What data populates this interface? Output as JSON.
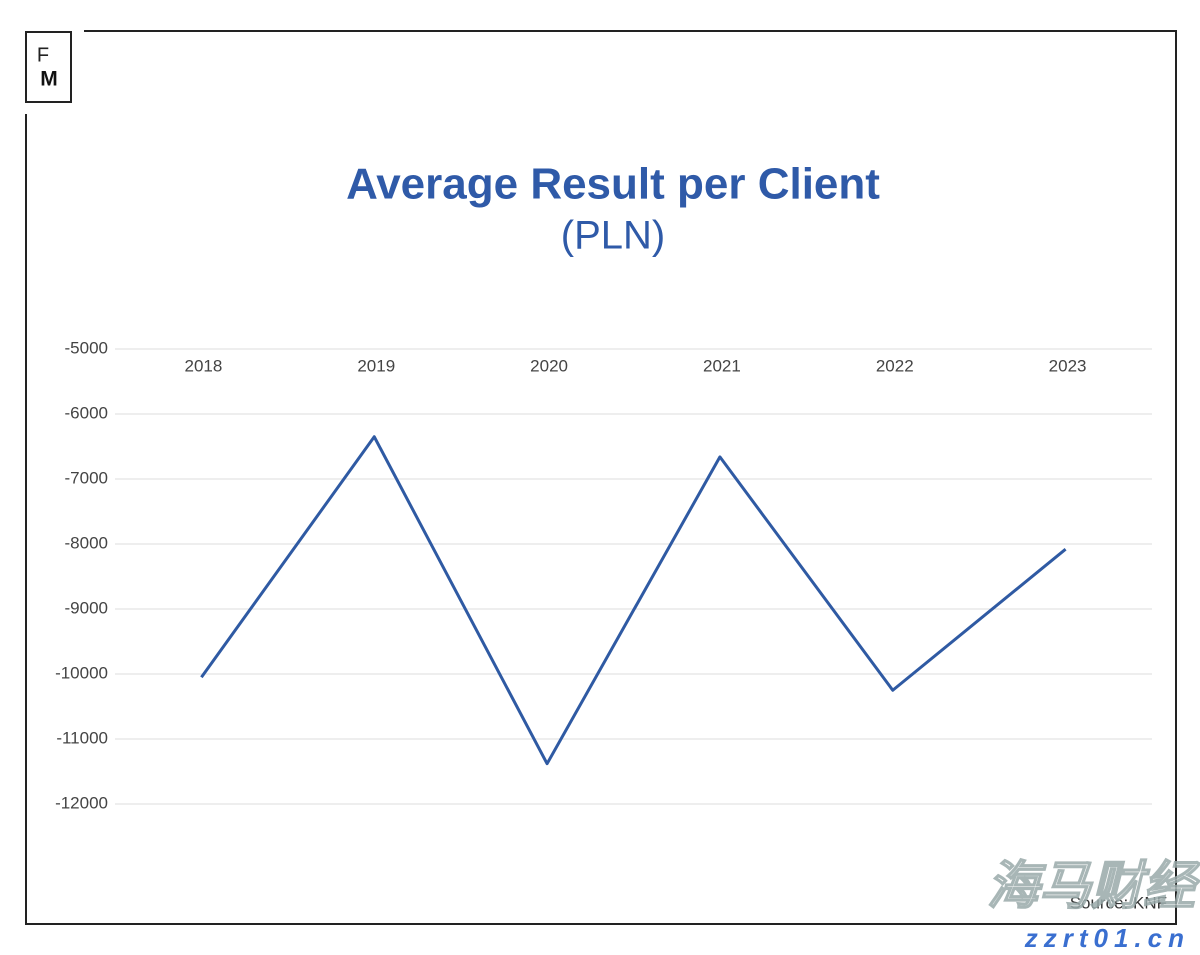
{
  "chart_data": {
    "type": "line",
    "title": "Average Result per Client",
    "subtitle": "(PLN)",
    "categories": [
      "2018",
      "2019",
      "2020",
      "2021",
      "2022",
      "2023"
    ],
    "series": [
      {
        "name": "Average Result per Client",
        "color": "#2f5aa3",
        "values": [
          -10050,
          -6350,
          -11380,
          -6660,
          -10250,
          -8080
        ]
      }
    ],
    "ylim": [
      -12000,
      -5000
    ],
    "yticks": [
      -5000,
      -6000,
      -7000,
      -8000,
      -9000,
      -10000,
      -11000,
      -12000
    ],
    "grid": true
  },
  "logo": {
    "top": "F",
    "bottom": "M"
  },
  "source": "Source: KNF",
  "watermark": {
    "name": "海马财经",
    "url": "zzrt01.cn"
  }
}
